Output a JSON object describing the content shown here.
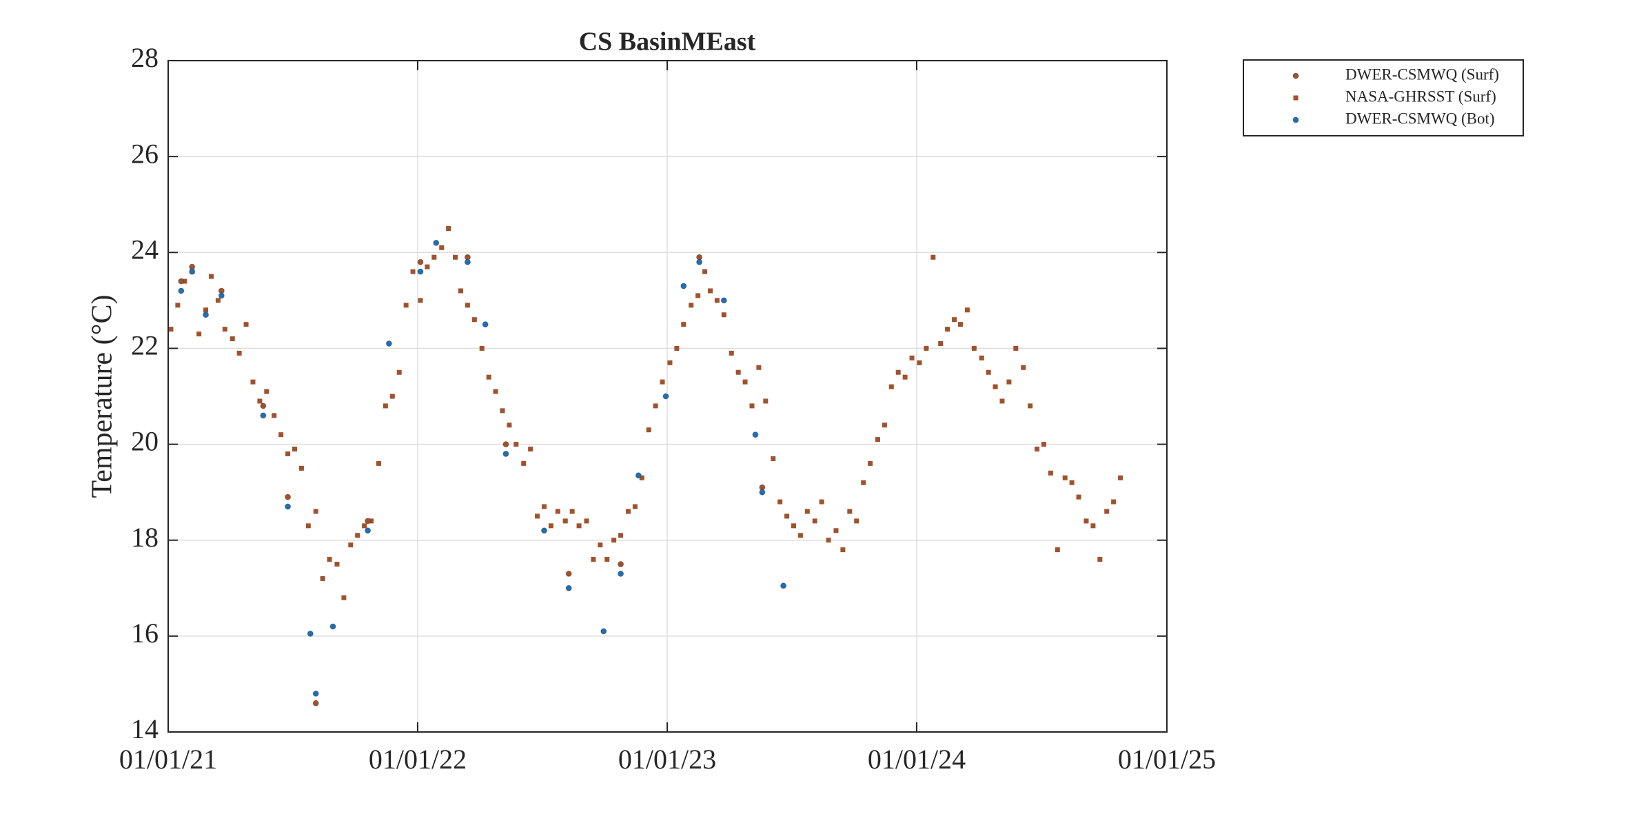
{
  "chart_data": {
    "type": "scatter",
    "title": "CS BasinMEast",
    "y_label": "Temperature (°C)",
    "xlim": [
      "2021-01-01",
      "2025-01-01"
    ],
    "xticks": [
      {
        "value": "2021-01-01",
        "label": "01/01/21"
      },
      {
        "value": "2022-01-01",
        "label": "01/01/22"
      },
      {
        "value": "2023-01-01",
        "label": "01/01/23"
      },
      {
        "value": "2024-01-01",
        "label": "01/01/24"
      },
      {
        "value": "2025-01-01",
        "label": "01/01/25"
      }
    ],
    "ylim": [
      14,
      28
    ],
    "yticks": [
      14,
      16,
      18,
      20,
      22,
      24,
      26,
      28
    ],
    "grid": true,
    "legend": "outside-top-right",
    "series": [
      {
        "name": "NASA-GHRSST (Surf)",
        "color": "#a0522d",
        "marker": "square",
        "x": [
          "2021-01-05",
          "2021-01-15",
          "2021-01-25",
          "2021-02-05",
          "2021-02-15",
          "2021-02-25",
          "2021-03-05",
          "2021-03-15",
          "2021-03-25",
          "2021-04-05",
          "2021-04-15",
          "2021-04-25",
          "2021-05-05",
          "2021-05-15",
          "2021-05-25",
          "2021-06-05",
          "2021-06-15",
          "2021-06-25",
          "2021-07-05",
          "2021-07-15",
          "2021-07-25",
          "2021-08-05",
          "2021-08-15",
          "2021-08-25",
          "2021-09-05",
          "2021-09-15",
          "2021-09-25",
          "2021-10-05",
          "2021-10-15",
          "2021-10-25",
          "2021-11-05",
          "2021-11-15",
          "2021-11-25",
          "2021-12-05",
          "2021-12-15",
          "2021-12-25",
          "2022-01-05",
          "2022-01-15",
          "2022-01-25",
          "2022-02-05",
          "2022-02-15",
          "2022-02-25",
          "2022-03-05",
          "2022-03-15",
          "2022-03-25",
          "2022-04-05",
          "2022-04-15",
          "2022-04-25",
          "2022-05-05",
          "2022-05-15",
          "2022-05-25",
          "2022-06-05",
          "2022-06-15",
          "2022-06-25",
          "2022-07-05",
          "2022-07-15",
          "2022-07-25",
          "2022-08-05",
          "2022-08-15",
          "2022-08-25",
          "2022-09-05",
          "2022-09-15",
          "2022-09-25",
          "2022-10-05",
          "2022-10-15",
          "2022-10-25",
          "2022-11-05",
          "2022-11-15",
          "2022-11-25",
          "2022-12-05",
          "2022-12-15",
          "2022-12-25",
          "2023-01-05",
          "2023-01-15",
          "2023-01-25",
          "2023-02-05",
          "2023-02-15",
          "2023-02-25",
          "2023-03-05",
          "2023-03-15",
          "2023-03-25",
          "2023-04-05",
          "2023-04-15",
          "2023-04-25",
          "2023-05-05",
          "2023-05-15",
          "2023-05-25",
          "2023-06-05",
          "2023-06-15",
          "2023-06-25",
          "2023-07-05",
          "2023-07-15",
          "2023-07-25",
          "2023-08-05",
          "2023-08-15",
          "2023-08-25",
          "2023-09-05",
          "2023-09-15",
          "2023-09-25",
          "2023-10-05",
          "2023-10-15",
          "2023-10-25",
          "2023-11-05",
          "2023-11-15",
          "2023-11-25",
          "2023-12-05",
          "2023-12-15",
          "2023-12-25",
          "2024-01-05",
          "2024-01-15",
          "2024-01-25",
          "2024-02-05",
          "2024-02-15",
          "2024-02-25",
          "2024-03-05",
          "2024-03-15",
          "2024-03-25",
          "2024-04-05",
          "2024-04-15",
          "2024-04-25",
          "2024-05-05",
          "2024-05-15",
          "2024-05-25",
          "2024-06-05",
          "2024-06-15",
          "2024-06-25",
          "2024-07-05",
          "2024-07-15",
          "2024-07-25",
          "2024-08-05",
          "2024-08-15",
          "2024-08-25",
          "2024-09-05",
          "2024-09-15",
          "2024-09-25",
          "2024-10-05",
          "2024-10-15",
          "2024-10-25"
        ],
        "values": [
          22.4,
          22.9,
          23.4,
          23.6,
          22.3,
          22.8,
          23.5,
          23.0,
          22.4,
          22.2,
          21.9,
          22.5,
          21.3,
          20.9,
          21.1,
          20.6,
          20.2,
          19.8,
          19.9,
          19.5,
          18.3,
          18.6,
          17.2,
          17.6,
          17.5,
          16.8,
          17.9,
          18.1,
          18.3,
          18.4,
          19.6,
          20.8,
          21.0,
          21.5,
          22.9,
          23.6,
          23.0,
          23.7,
          23.9,
          24.1,
          24.5,
          23.9,
          23.2,
          22.9,
          22.6,
          22.0,
          21.4,
          21.1,
          20.7,
          20.4,
          20.0,
          19.6,
          19.9,
          18.5,
          18.7,
          18.3,
          18.6,
          18.4,
          18.6,
          18.3,
          18.4,
          17.6,
          17.9,
          17.6,
          18.0,
          18.1,
          18.6,
          18.7,
          19.3,
          20.3,
          20.8,
          21.3,
          21.7,
          22.0,
          22.5,
          22.9,
          23.1,
          23.6,
          23.2,
          23.0,
          22.7,
          21.9,
          21.5,
          21.3,
          20.8,
          21.6,
          20.9,
          19.7,
          18.8,
          18.5,
          18.3,
          18.1,
          18.6,
          18.4,
          18.8,
          18.0,
          18.2,
          17.8,
          18.6,
          18.4,
          19.2,
          19.6,
          20.1,
          20.4,
          21.2,
          21.5,
          21.4,
          21.8,
          21.7,
          22.0,
          23.9,
          22.1,
          22.4,
          22.6,
          22.5,
          22.8,
          22.0,
          21.8,
          21.5,
          21.2,
          20.9,
          21.3,
          22.0,
          21.6,
          20.8,
          19.9,
          20.0,
          19.4,
          17.8,
          19.3,
          19.2,
          18.9,
          18.4,
          18.3,
          17.6,
          18.6,
          18.8,
          19.3
        ]
      },
      {
        "name": "DWER-CSMWQ (Surf)",
        "color": "#a0522d",
        "marker": "circle",
        "x": [
          "2021-01-20",
          "2021-02-05",
          "2021-03-20",
          "2021-05-20",
          "2021-06-25",
          "2021-08-05",
          "2021-10-20",
          "2022-01-05",
          "2022-03-15",
          "2022-05-10",
          "2022-08-10",
          "2022-10-25",
          "2023-02-17",
          "2023-05-20"
        ],
        "values": [
          23.4,
          23.7,
          23.2,
          20.8,
          18.9,
          14.6,
          18.4,
          23.8,
          23.9,
          20.0,
          17.3,
          17.5,
          23.9,
          19.1
        ]
      },
      {
        "name": "DWER-CSMWQ (Bot)",
        "color": "#1f6fb4",
        "marker": "circle",
        "x": [
          "2021-01-20",
          "2021-02-05",
          "2021-02-25",
          "2021-03-20",
          "2021-05-20",
          "2021-06-25",
          "2021-07-28",
          "2021-08-05",
          "2021-08-30",
          "2021-10-20",
          "2021-11-20",
          "2022-01-05",
          "2022-01-28",
          "2022-03-15",
          "2022-04-10",
          "2022-05-10",
          "2022-07-05",
          "2022-08-10",
          "2022-09-30",
          "2022-10-25",
          "2022-11-20",
          "2022-12-30",
          "2023-01-25",
          "2023-02-17",
          "2023-03-25",
          "2023-05-10",
          "2023-05-20",
          "2023-06-20"
        ],
        "values": [
          23.2,
          23.6,
          22.7,
          23.1,
          20.6,
          18.7,
          16.05,
          14.8,
          16.2,
          18.2,
          22.1,
          23.6,
          24.2,
          23.8,
          22.5,
          19.8,
          18.2,
          17.0,
          16.1,
          17.3,
          19.35,
          21.0,
          23.3,
          23.8,
          23.0,
          20.2,
          19.0,
          17.05
        ]
      }
    ]
  }
}
